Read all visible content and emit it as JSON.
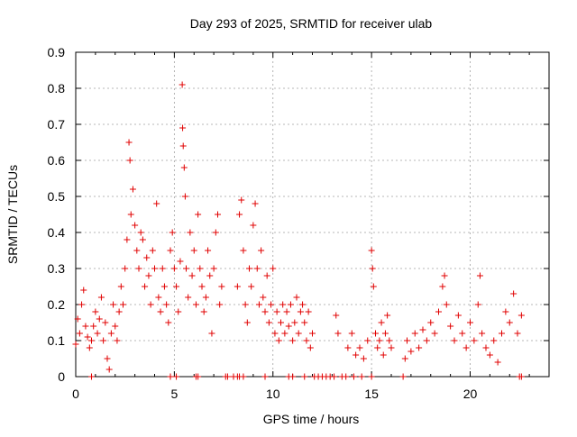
{
  "chart_data": {
    "type": "scatter",
    "title": "Day 293 of 2025, SRMTID for receiver ulab",
    "xlabel": "GPS time / hours",
    "ylabel": "SRMTID / TECUs",
    "xlim": [
      0,
      24
    ],
    "ylim": [
      0,
      0.9
    ],
    "xticks": [
      "0",
      "5",
      "10",
      "15",
      "20"
    ],
    "xtick_values": [
      0,
      5,
      10,
      15,
      20
    ],
    "yticks": [
      "0",
      "0.1",
      "0.2",
      "0.3",
      "0.4",
      "0.5",
      "0.6",
      "0.7",
      "0.8",
      "0.9"
    ],
    "ytick_values": [
      0,
      0.1,
      0.2,
      0.3,
      0.4,
      0.5,
      0.6,
      0.7,
      0.8,
      0.9
    ],
    "grid": true,
    "marker": "+",
    "color": "#e00000",
    "series": [
      {
        "name": "SRMTID",
        "points": [
          [
            0.0,
            0.09
          ],
          [
            0.1,
            0.16
          ],
          [
            0.2,
            0.12
          ],
          [
            0.3,
            0.2
          ],
          [
            0.4,
            0.24
          ],
          [
            0.5,
            0.14
          ],
          [
            0.6,
            0.11
          ],
          [
            0.7,
            0.08
          ],
          [
            0.8,
            0.1
          ],
          [
            0.9,
            0.14
          ],
          [
            1.0,
            0.18
          ],
          [
            1.1,
            0.12
          ],
          [
            1.2,
            0.16
          ],
          [
            1.3,
            0.22
          ],
          [
            1.4,
            0.1
          ],
          [
            1.5,
            0.15
          ],
          [
            1.6,
            0.05
          ],
          [
            1.7,
            0.02
          ],
          [
            1.8,
            0.12
          ],
          [
            1.9,
            0.2
          ],
          [
            2.0,
            0.14
          ],
          [
            2.1,
            0.1
          ],
          [
            2.2,
            0.18
          ],
          [
            2.3,
            0.25
          ],
          [
            2.4,
            0.2
          ],
          [
            2.5,
            0.3
          ],
          [
            2.6,
            0.38
          ],
          [
            2.7,
            0.65
          ],
          [
            2.75,
            0.6
          ],
          [
            2.8,
            0.45
          ],
          [
            2.9,
            0.52
          ],
          [
            3.0,
            0.42
          ],
          [
            3.1,
            0.35
          ],
          [
            3.2,
            0.3
          ],
          [
            3.3,
            0.4
          ],
          [
            3.4,
            0.38
          ],
          [
            3.5,
            0.25
          ],
          [
            3.6,
            0.33
          ],
          [
            3.7,
            0.28
          ],
          [
            3.8,
            0.2
          ],
          [
            3.9,
            0.35
          ],
          [
            4.0,
            0.3
          ],
          [
            4.1,
            0.48
          ],
          [
            4.2,
            0.22
          ],
          [
            4.3,
            0.18
          ],
          [
            4.4,
            0.3
          ],
          [
            4.5,
            0.25
          ],
          [
            4.6,
            0.2
          ],
          [
            4.7,
            0.15
          ],
          [
            4.8,
            0.35
          ],
          [
            4.9,
            0.4
          ],
          [
            5.0,
            0.3
          ],
          [
            5.1,
            0.25
          ],
          [
            5.2,
            0.18
          ],
          [
            5.3,
            0.32
          ],
          [
            5.4,
            0.81
          ],
          [
            5.42,
            0.69
          ],
          [
            5.45,
            0.64
          ],
          [
            5.5,
            0.58
          ],
          [
            5.55,
            0.5
          ],
          [
            5.6,
            0.3
          ],
          [
            5.7,
            0.22
          ],
          [
            5.8,
            0.4
          ],
          [
            5.9,
            0.28
          ],
          [
            6.0,
            0.35
          ],
          [
            6.1,
            0.2
          ],
          [
            6.2,
            0.45
          ],
          [
            6.3,
            0.3
          ],
          [
            6.4,
            0.25
          ],
          [
            6.5,
            0.18
          ],
          [
            6.6,
            0.22
          ],
          [
            6.7,
            0.35
          ],
          [
            6.8,
            0.28
          ],
          [
            6.9,
            0.12
          ],
          [
            7.0,
            0.3
          ],
          [
            7.1,
            0.4
          ],
          [
            7.2,
            0.45
          ],
          [
            7.3,
            0.2
          ],
          [
            7.4,
            0.25
          ],
          [
            8.2,
            0.25
          ],
          [
            8.3,
            0.45
          ],
          [
            8.4,
            0.49
          ],
          [
            8.5,
            0.35
          ],
          [
            8.6,
            0.2
          ],
          [
            8.7,
            0.15
          ],
          [
            8.8,
            0.3
          ],
          [
            8.9,
            0.25
          ],
          [
            9.0,
            0.42
          ],
          [
            9.1,
            0.48
          ],
          [
            9.2,
            0.3
          ],
          [
            9.3,
            0.2
          ],
          [
            9.4,
            0.35
          ],
          [
            9.5,
            0.22
          ],
          [
            9.6,
            0.18
          ],
          [
            9.7,
            0.28
          ],
          [
            9.8,
            0.15
          ],
          [
            9.9,
            0.2
          ],
          [
            10.0,
            0.3
          ],
          [
            10.1,
            0.12
          ],
          [
            10.2,
            0.18
          ],
          [
            10.3,
            0.1
          ],
          [
            10.4,
            0.15
          ],
          [
            10.5,
            0.2
          ],
          [
            10.6,
            0.12
          ],
          [
            10.7,
            0.18
          ],
          [
            10.8,
            0.14
          ],
          [
            10.9,
            0.2
          ],
          [
            11.0,
            0.1
          ],
          [
            11.1,
            0.15
          ],
          [
            11.2,
            0.22
          ],
          [
            11.3,
            0.12
          ],
          [
            11.4,
            0.18
          ],
          [
            11.5,
            0.2
          ],
          [
            11.6,
            0.15
          ],
          [
            11.7,
            0.1
          ],
          [
            11.8,
            0.18
          ],
          [
            11.9,
            0.08
          ],
          [
            12.0,
            0.12
          ],
          [
            13.2,
            0.17
          ],
          [
            13.3,
            0.12
          ],
          [
            13.8,
            0.08
          ],
          [
            14.0,
            0.12
          ],
          [
            14.2,
            0.06
          ],
          [
            14.4,
            0.08
          ],
          [
            14.6,
            0.05
          ],
          [
            14.8,
            0.1
          ],
          [
            15.0,
            0.35
          ],
          [
            15.05,
            0.3
          ],
          [
            15.1,
            0.25
          ],
          [
            15.2,
            0.12
          ],
          [
            15.3,
            0.08
          ],
          [
            15.4,
            0.1
          ],
          [
            15.5,
            0.15
          ],
          [
            15.6,
            0.06
          ],
          [
            15.7,
            0.12
          ],
          [
            15.8,
            0.17
          ],
          [
            15.9,
            0.1
          ],
          [
            16.0,
            0.08
          ],
          [
            16.7,
            0.05
          ],
          [
            16.8,
            0.1
          ],
          [
            17.0,
            0.07
          ],
          [
            17.2,
            0.12
          ],
          [
            17.4,
            0.08
          ],
          [
            17.6,
            0.13
          ],
          [
            17.8,
            0.1
          ],
          [
            18.0,
            0.15
          ],
          [
            18.2,
            0.12
          ],
          [
            18.4,
            0.18
          ],
          [
            18.6,
            0.25
          ],
          [
            18.7,
            0.28
          ],
          [
            18.8,
            0.2
          ],
          [
            19.0,
            0.14
          ],
          [
            19.2,
            0.1
          ],
          [
            19.4,
            0.17
          ],
          [
            19.6,
            0.12
          ],
          [
            19.8,
            0.08
          ],
          [
            20.0,
            0.15
          ],
          [
            20.2,
            0.1
          ],
          [
            20.4,
            0.2
          ],
          [
            20.5,
            0.28
          ],
          [
            20.6,
            0.12
          ],
          [
            20.8,
            0.08
          ],
          [
            21.0,
            0.06
          ],
          [
            21.2,
            0.1
          ],
          [
            21.4,
            0.04
          ],
          [
            21.6,
            0.12
          ],
          [
            21.8,
            0.18
          ],
          [
            22.0,
            0.15
          ],
          [
            22.2,
            0.23
          ],
          [
            22.4,
            0.12
          ],
          [
            22.6,
            0.17
          ]
        ],
        "baseline_points_x": [
          0.8,
          4.8,
          5.1,
          6.1,
          6.2,
          7.6,
          7.7,
          8.0,
          8.2,
          8.3,
          8.5,
          9.6,
          10.8,
          11.0,
          11.6,
          12.1,
          12.3,
          12.5,
          12.7,
          12.9,
          13.1,
          13.5,
          13.7,
          14.1,
          14.5,
          15.0,
          16.6,
          22.5,
          22.6
        ]
      }
    ]
  }
}
